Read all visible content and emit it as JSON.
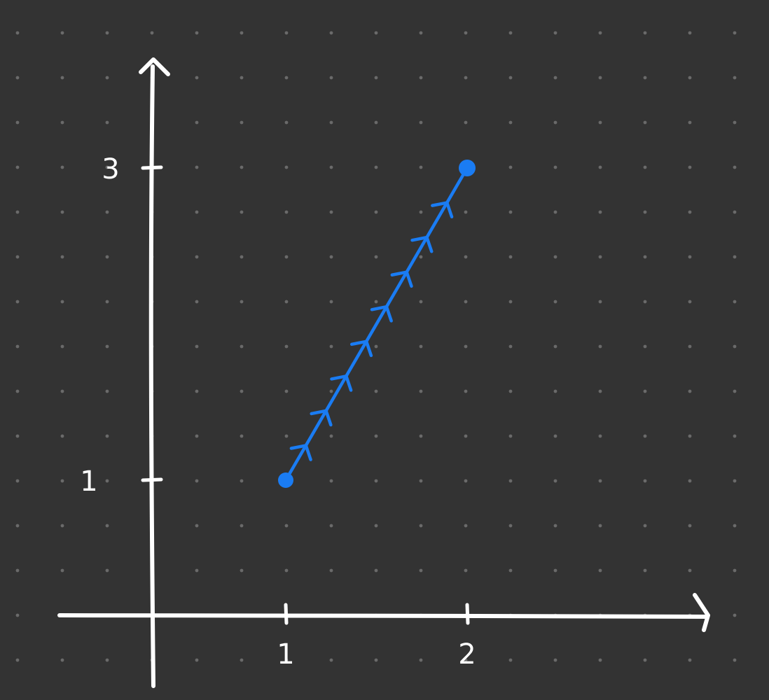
{
  "colors": {
    "background": "#333333",
    "dots": "#6a6a6a",
    "axes": "#ffffff",
    "path": "#1a7cf3"
  },
  "chart_data": {
    "type": "line",
    "x_ticks": [
      {
        "value": 1,
        "label": "1"
      },
      {
        "value": 2,
        "label": "2"
      }
    ],
    "y_ticks": [
      {
        "value": 1,
        "label": "1"
      },
      {
        "value": 3,
        "label": "3"
      }
    ],
    "series": [
      {
        "points": [
          {
            "x": 1,
            "y": 1
          },
          {
            "x": 2,
            "y": 3
          }
        ],
        "direction_arrows": 8
      }
    ]
  }
}
